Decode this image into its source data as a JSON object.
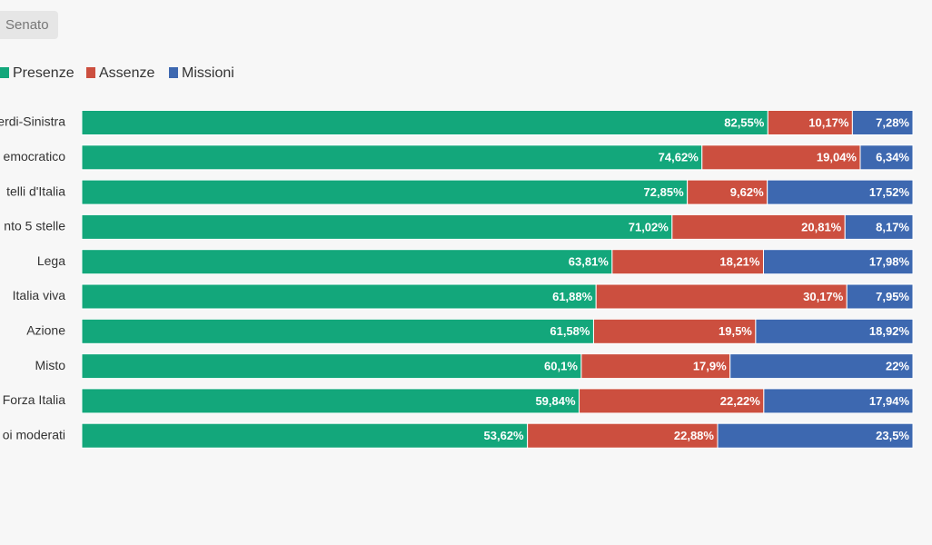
{
  "tab": {
    "label": "Senato"
  },
  "chart_data": {
    "type": "bar",
    "orientation": "horizontal",
    "stacked": true,
    "categories": [
      "erdi-Sinistra",
      "emocratico",
      "telli d'Italia",
      "nto 5 stelle",
      "Lega",
      "Italia viva",
      "Azione",
      "Misto",
      "Forza Italia",
      "oi moderati"
    ],
    "series": [
      {
        "name": "Presenze",
        "color": "#13a77b",
        "values": [
          82.55,
          74.62,
          72.85,
          71.02,
          63.81,
          61.88,
          61.58,
          60.1,
          59.84,
          53.62
        ],
        "value_labels": [
          "82,55%",
          "74,62%",
          "72,85%",
          "71,02%",
          "63,81%",
          "61,88%",
          "61,58%",
          "60,1%",
          "59,84%",
          "53,62%"
        ]
      },
      {
        "name": "Assenze",
        "color": "#cc4f3f",
        "values": [
          10.17,
          19.04,
          9.62,
          20.81,
          18.21,
          30.17,
          19.5,
          17.9,
          22.22,
          22.88
        ],
        "value_labels": [
          "10,17%",
          "19,04%",
          "9,62%",
          "20,81%",
          "18,21%",
          "30,17%",
          "19,5%",
          "17,9%",
          "22,22%",
          "22,88%"
        ]
      },
      {
        "name": "Missioni",
        "color": "#3d68b0",
        "values": [
          7.28,
          6.34,
          17.52,
          8.17,
          17.98,
          7.95,
          18.92,
          22,
          17.94,
          23.5
        ],
        "value_labels": [
          "7,28%",
          "6,34%",
          "17,52%",
          "8,17%",
          "17,98%",
          "7,95%",
          "18,92%",
          "22%",
          "17,94%",
          "23,5%"
        ]
      }
    ]
  }
}
